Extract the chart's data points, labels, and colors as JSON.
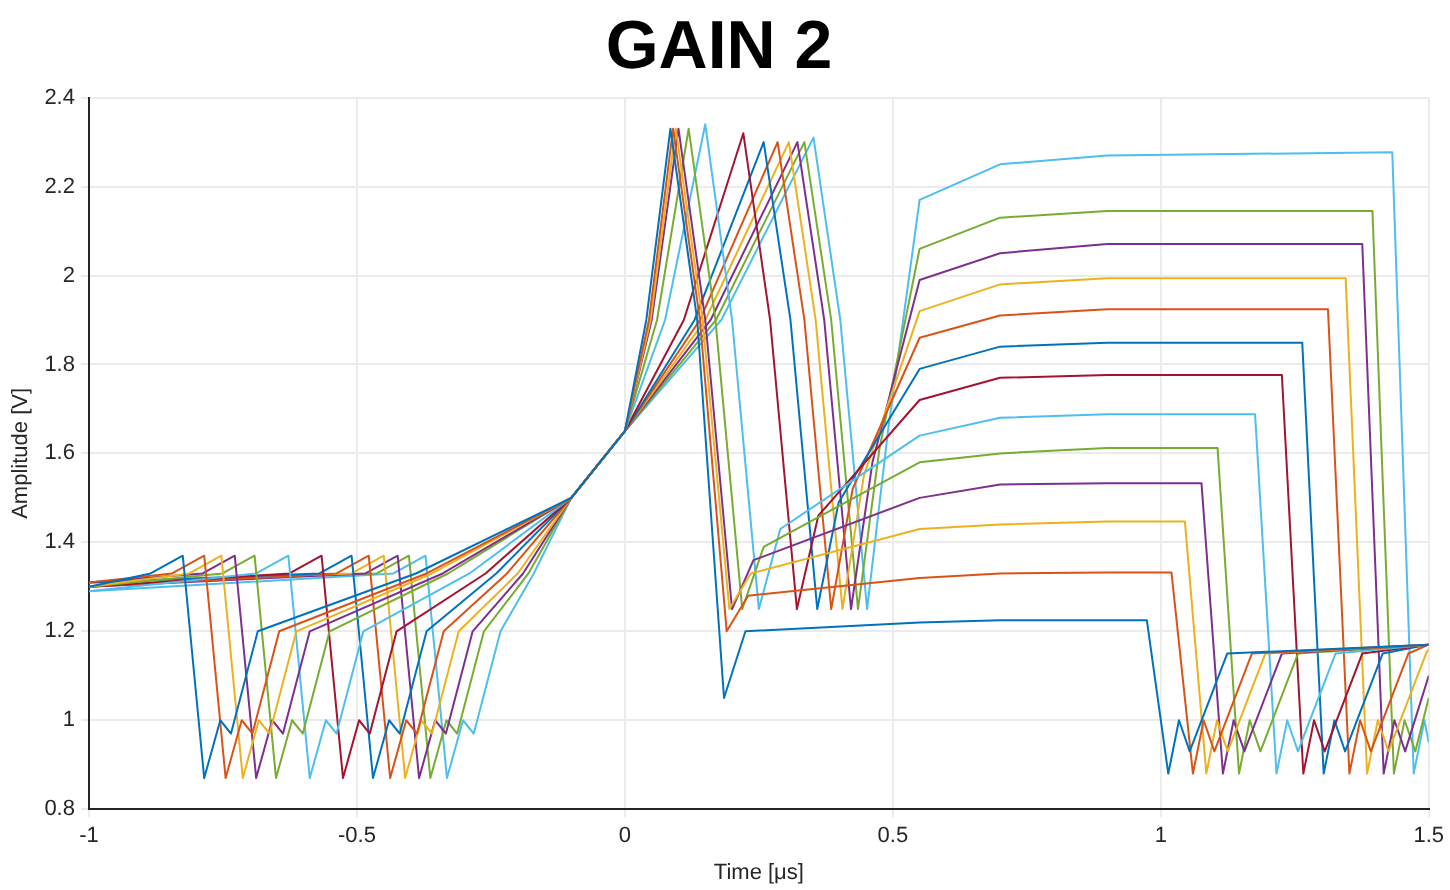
{
  "chart_data": {
    "type": "line",
    "title": "GAIN 2",
    "xlabel": "Time [μs]",
    "ylabel": "Amplitude [V]",
    "xlim": [
      -1,
      1.5
    ],
    "xticks": [
      -1,
      -0.5,
      0,
      0.5,
      1,
      1.5
    ],
    "ylim": [
      0.8,
      2.4
    ],
    "yticks": [
      0.8,
      1,
      1.2,
      1.4,
      1.6,
      1.8,
      2,
      2.2,
      2.4
    ],
    "grid": true,
    "marker": "none",
    "line_style": "solid",
    "series": [
      {
        "color": "#0072bd",
        "x": [
          -1,
          -0.885,
          -0.825,
          -0.785,
          -0.755,
          -0.735,
          -0.685,
          -0.39,
          -0.1,
          0,
          0.04,
          0.085,
          0.135,
          0.185,
          0.225,
          0.55,
          0.7,
          0.9,
          0.974,
          1.014,
          1.034,
          1.054,
          1.124,
          1.5
        ],
        "values": [
          1.3,
          1.33,
          1.37,
          0.87,
          1.0,
          0.97,
          1.2,
          1.33,
          1.5,
          1.65,
          1.9,
          2.33,
          1.9,
          1.05,
          1.2,
          1.22,
          1.225,
          1.225,
          1.225,
          0.88,
          1.0,
          0.93,
          1.15,
          1.17
        ]
      },
      {
        "color": "#d95319",
        "x": [
          -1,
          -0.845,
          -0.785,
          -0.745,
          -0.715,
          -0.695,
          -0.645,
          -0.37,
          -0.1,
          0,
          0.045,
          0.09,
          0.14,
          0.19,
          0.23,
          0.55,
          0.7,
          0.9,
          1.02,
          1.06,
          1.08,
          1.1,
          1.17,
          1.5
        ],
        "values": [
          1.31,
          1.33,
          1.37,
          0.87,
          1.0,
          0.97,
          1.2,
          1.33,
          1.5,
          1.65,
          1.9,
          2.33,
          1.9,
          1.2,
          1.28,
          1.32,
          1.33,
          1.332,
          1.332,
          0.88,
          1.0,
          0.93,
          1.15,
          1.17
        ]
      },
      {
        "color": "#edb120",
        "x": [
          -1,
          -0.813,
          -0.753,
          -0.713,
          -0.683,
          -0.663,
          -0.613,
          -0.36,
          -0.1,
          0,
          0.048,
          0.095,
          0.145,
          0.195,
          0.235,
          0.55,
          0.7,
          0.9,
          1.045,
          1.085,
          1.105,
          1.125,
          1.195,
          1.5
        ],
        "values": [
          1.3,
          1.33,
          1.37,
          0.87,
          1.0,
          0.97,
          1.2,
          1.33,
          1.5,
          1.65,
          1.9,
          2.33,
          1.9,
          1.25,
          1.33,
          1.43,
          1.44,
          1.447,
          1.447,
          0.88,
          1.0,
          0.93,
          1.15,
          1.17
        ]
      },
      {
        "color": "#7e2f8e",
        "x": [
          -1,
          -0.788,
          -0.728,
          -0.688,
          -0.658,
          -0.638,
          -0.588,
          -0.34,
          -0.1,
          0,
          0.05,
          0.1,
          0.15,
          0.2,
          0.24,
          0.55,
          0.7,
          0.9,
          1.076,
          1.116,
          1.136,
          1.156,
          1.226,
          1.5
        ],
        "values": [
          1.31,
          1.33,
          1.37,
          0.87,
          1.0,
          0.97,
          1.2,
          1.33,
          1.5,
          1.65,
          1.9,
          2.33,
          1.9,
          1.25,
          1.36,
          1.5,
          1.53,
          1.533,
          1.533,
          0.88,
          1.0,
          0.93,
          1.15,
          1.17
        ]
      },
      {
        "color": "#77ac30",
        "x": [
          -1,
          -0.751,
          -0.691,
          -0.651,
          -0.621,
          -0.601,
          -0.551,
          -0.33,
          -0.1,
          0,
          0.06,
          0.119,
          0.169,
          0.219,
          0.259,
          0.55,
          0.7,
          0.9,
          1.106,
          1.146,
          1.166,
          1.186,
          1.256,
          1.5
        ],
        "values": [
          1.3,
          1.33,
          1.37,
          0.87,
          1.0,
          0.97,
          1.2,
          1.33,
          1.5,
          1.65,
          1.9,
          2.33,
          1.9,
          1.25,
          1.39,
          1.58,
          1.6,
          1.612,
          1.612,
          0.88,
          1.0,
          0.93,
          1.15,
          1.17
        ]
      },
      {
        "color": "#4dbeee",
        "x": [
          -1,
          -0.688,
          -0.628,
          -0.588,
          -0.558,
          -0.538,
          -0.488,
          -0.29,
          -0.1,
          0,
          0.075,
          0.15,
          0.2,
          0.25,
          0.29,
          0.55,
          0.7,
          0.9,
          1.176,
          1.216,
          1.236,
          1.256,
          1.326,
          1.5
        ],
        "values": [
          1.29,
          1.33,
          1.37,
          0.87,
          1.0,
          0.97,
          1.2,
          1.33,
          1.5,
          1.65,
          1.9,
          2.34,
          1.9,
          1.25,
          1.43,
          1.64,
          1.68,
          1.688,
          1.688,
          0.88,
          1.0,
          0.93,
          1.15,
          1.17
        ]
      },
      {
        "color": "#a2142f",
        "x": [
          -1,
          -0.626,
          -0.566,
          -0.526,
          -0.496,
          -0.476,
          -0.426,
          -0.26,
          -0.1,
          0,
          0.11,
          0.221,
          0.271,
          0.321,
          0.361,
          0.55,
          0.7,
          0.9,
          1.226,
          1.266,
          1.286,
          1.306,
          1.376,
          1.5
        ],
        "values": [
          1.3,
          1.33,
          1.37,
          0.87,
          1.0,
          0.97,
          1.2,
          1.33,
          1.5,
          1.65,
          1.9,
          2.32,
          1.9,
          1.25,
          1.46,
          1.72,
          1.77,
          1.776,
          1.776,
          0.88,
          1.0,
          0.93,
          1.15,
          1.17
        ]
      },
      {
        "color": "#0072bd",
        "x": [
          -1,
          -0.57,
          -0.51,
          -0.47,
          -0.44,
          -0.42,
          -0.37,
          -0.24,
          -0.1,
          0,
          0.13,
          0.259,
          0.309,
          0.359,
          0.399,
          0.55,
          0.7,
          0.9,
          1.264,
          1.304,
          1.324,
          1.344,
          1.414,
          1.5
        ],
        "values": [
          1.31,
          1.33,
          1.37,
          0.87,
          1.0,
          0.97,
          1.2,
          1.33,
          1.5,
          1.65,
          1.9,
          2.3,
          1.9,
          1.25,
          1.49,
          1.79,
          1.84,
          1.849,
          1.849,
          0.88,
          1.0,
          0.93,
          1.15,
          1.17
        ]
      },
      {
        "color": "#d95319",
        "x": [
          -1,
          -0.538,
          -0.478,
          -0.438,
          -0.408,
          -0.388,
          -0.338,
          -0.22,
          -0.1,
          0,
          0.14,
          0.285,
          0.335,
          0.385,
          0.425,
          0.55,
          0.7,
          0.9,
          1.312,
          1.352,
          1.372,
          1.392,
          1.462,
          1.5
        ],
        "values": [
          1.3,
          1.33,
          1.37,
          0.87,
          1.0,
          0.97,
          1.2,
          1.33,
          1.5,
          1.65,
          1.9,
          2.3,
          1.9,
          1.25,
          1.52,
          1.86,
          1.91,
          1.924,
          1.924,
          0.88,
          1.0,
          0.93,
          1.15,
          1.17
        ]
      },
      {
        "color": "#edb120",
        "x": [
          -1,
          -0.51,
          -0.45,
          -0.41,
          -0.38,
          -0.36,
          -0.31,
          -0.2,
          -0.1,
          0,
          0.15,
          0.306,
          0.356,
          0.406,
          0.446,
          0.55,
          0.7,
          0.9,
          1.345,
          1.385,
          1.405,
          1.425,
          1.495,
          1.5
        ],
        "values": [
          1.31,
          1.33,
          1.37,
          0.87,
          1.0,
          0.97,
          1.2,
          1.33,
          1.5,
          1.65,
          1.9,
          2.3,
          1.9,
          1.25,
          1.55,
          1.92,
          1.98,
          1.994,
          1.994,
          0.88,
          1.0,
          0.93,
          1.15,
          1.16
        ]
      },
      {
        "color": "#7e2f8e",
        "x": [
          -1,
          -0.484,
          -0.424,
          -0.384,
          -0.354,
          -0.334,
          -0.284,
          -0.19,
          -0.1,
          0,
          0.16,
          0.322,
          0.372,
          0.422,
          0.462,
          0.55,
          0.7,
          0.9,
          1.376,
          1.416,
          1.436,
          1.456,
          1.5
        ],
        "values": [
          1.3,
          1.33,
          1.37,
          0.87,
          1.0,
          0.97,
          1.2,
          1.33,
          1.5,
          1.65,
          1.9,
          2.3,
          1.9,
          1.25,
          1.58,
          1.99,
          2.05,
          2.071,
          2.071,
          0.88,
          1.0,
          0.93,
          1.1
        ]
      },
      {
        "color": "#77ac30",
        "x": [
          -1,
          -0.463,
          -0.403,
          -0.363,
          -0.333,
          -0.313,
          -0.263,
          -0.18,
          -0.1,
          0,
          0.17,
          0.335,
          0.385,
          0.435,
          0.475,
          0.55,
          0.7,
          0.9,
          1.395,
          1.435,
          1.455,
          1.475,
          1.5
        ],
        "values": [
          1.31,
          1.33,
          1.37,
          0.87,
          1.0,
          0.97,
          1.2,
          1.33,
          1.5,
          1.65,
          1.9,
          2.3,
          1.9,
          1.25,
          1.61,
          2.06,
          2.13,
          2.145,
          2.145,
          0.88,
          1.0,
          0.93,
          1.05
        ]
      },
      {
        "color": "#4dbeee",
        "x": [
          -1,
          -0.432,
          -0.372,
          -0.332,
          -0.302,
          -0.282,
          -0.232,
          -0.17,
          -0.1,
          0,
          0.18,
          0.352,
          0.402,
          0.452,
          0.492,
          0.55,
          0.7,
          0.9,
          1.432,
          1.472,
          1.492,
          1.5
        ],
        "values": [
          1.29,
          1.33,
          1.37,
          0.87,
          1.0,
          0.97,
          1.2,
          1.33,
          1.5,
          1.65,
          1.9,
          2.31,
          1.9,
          1.25,
          1.66,
          2.17,
          2.25,
          2.27,
          2.277,
          0.88,
          1.0,
          0.95
        ]
      }
    ]
  }
}
